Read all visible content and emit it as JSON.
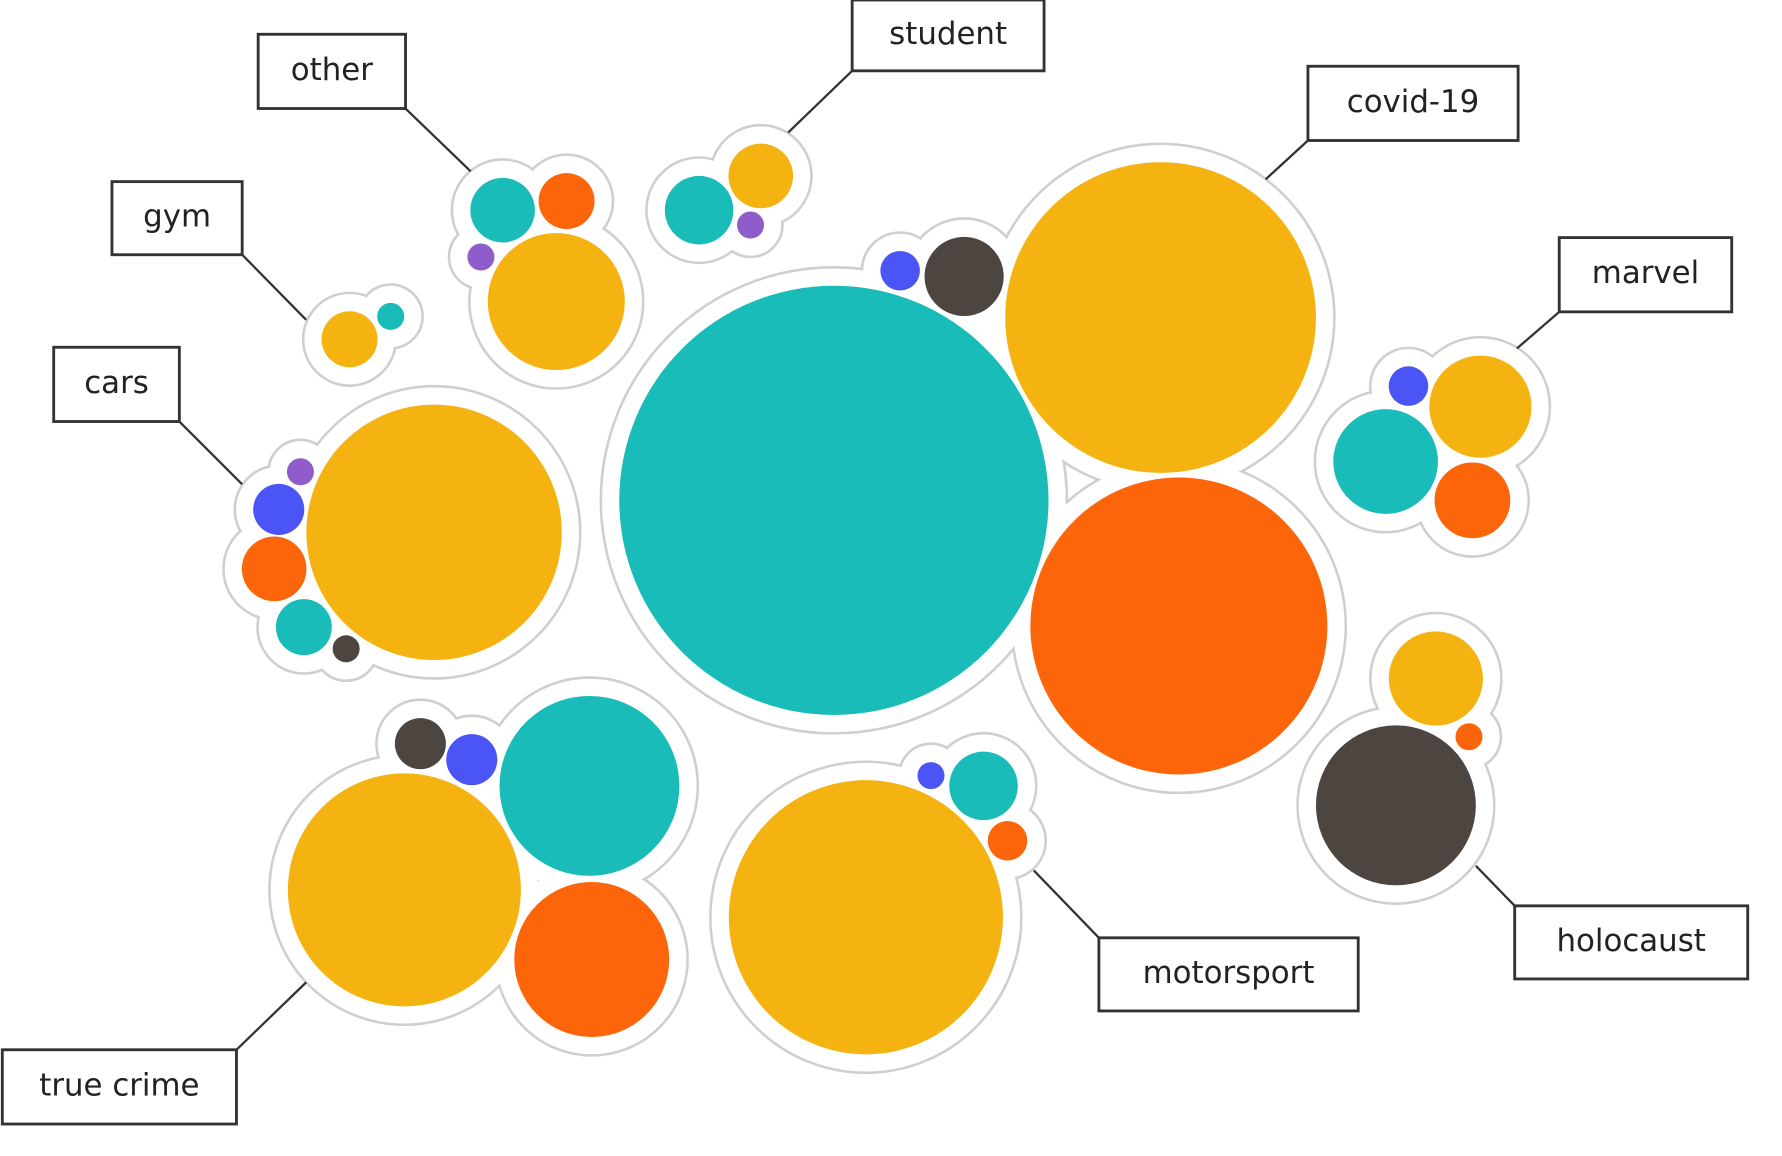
{
  "chart_data": {
    "type": "packed-bubble",
    "groups": [
      {
        "label": "covid-19",
        "bubbles": [
          {
            "color": "#1abcb9",
            "value": 353
          },
          {
            "color": "#f5b311",
            "value": 185
          },
          {
            "color": "#fc6509",
            "value": 169
          },
          {
            "color": "#4d4540",
            "value": 12
          },
          {
            "color": "#4b55f5",
            "value": 3
          }
        ]
      },
      {
        "label": "other",
        "bubbles": [
          {
            "color": "#1abcb9",
            "value": 8
          },
          {
            "color": "#fc6509",
            "value": 6
          },
          {
            "color": "#8f5ccc",
            "value": 1.4
          },
          {
            "color": "#f5b311",
            "value": 36
          }
        ]
      },
      {
        "label": "student",
        "bubbles": [
          {
            "color": "#f5b311",
            "value": 8
          },
          {
            "color": "#1abcb9",
            "value": 9
          },
          {
            "color": "#8f5ccc",
            "value": 1.4
          }
        ]
      },
      {
        "label": "gym",
        "bubbles": [
          {
            "color": "#f5b311",
            "value": 6
          },
          {
            "color": "#1abcb9",
            "value": 1.4
          }
        ]
      },
      {
        "label": "cars",
        "bubbles": [
          {
            "color": "#f5b311",
            "value": 125
          },
          {
            "color": "#4b55f5",
            "value": 5
          },
          {
            "color": "#8f5ccc",
            "value": 1.4
          },
          {
            "color": "#fc6509",
            "value": 8
          },
          {
            "color": "#1abcb9",
            "value": 6
          },
          {
            "color": "#4d4540",
            "value": 1.4
          }
        ]
      },
      {
        "label": "marvel",
        "bubbles": [
          {
            "color": "#f5b311",
            "value": 20
          },
          {
            "color": "#1abcb9",
            "value": 21
          },
          {
            "color": "#4b55f5",
            "value": 3
          },
          {
            "color": "#fc6509",
            "value": 11
          }
        ]
      },
      {
        "label": "holocaust",
        "bubbles": [
          {
            "color": "#f5b311",
            "value": 17
          },
          {
            "color": "#4d4540",
            "value": 49
          },
          {
            "color": "#fc6509",
            "value": 1.4
          }
        ]
      },
      {
        "label": "true crime",
        "bubbles": [
          {
            "color": "#f5b311",
            "value": 104
          },
          {
            "color": "#1abcb9",
            "value": 62
          },
          {
            "color": "#fc6509",
            "value": 46
          },
          {
            "color": "#4d4540",
            "value": 5
          },
          {
            "color": "#4b55f5",
            "value": 5
          }
        ]
      },
      {
        "label": "motorsport",
        "bubbles": [
          {
            "color": "#f5b311",
            "value": 144
          },
          {
            "color": "#1abcb9",
            "value": 9
          },
          {
            "color": "#4b55f5",
            "value": 1.4
          },
          {
            "color": "#fc6509",
            "value": 3
          }
        ]
      }
    ]
  }
}
